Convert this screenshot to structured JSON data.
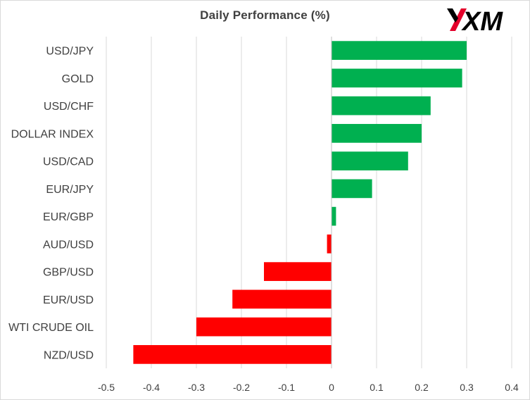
{
  "chart_data": {
    "type": "bar",
    "orientation": "horizontal",
    "title": "Daily Performance  (%)",
    "xlabel": "",
    "ylabel": "",
    "categories": [
      "USD/JPY",
      "GOLD",
      "USD/CHF",
      "DOLLAR INDEX",
      "USD/CAD",
      "EUR/JPY",
      "EUR/GBP",
      "AUD/USD",
      "GBP/USD",
      "EUR/USD",
      "WTI CRUDE OIL",
      "NZD/USD"
    ],
    "values": [
      0.3,
      0.29,
      0.22,
      0.2,
      0.17,
      0.09,
      0.01,
      -0.01,
      -0.15,
      -0.22,
      -0.3,
      -0.44
    ],
    "xlim": [
      -0.5,
      0.4
    ],
    "xticks": [
      "-0.5",
      "-0.4",
      "-0.3",
      "-0.2",
      "-0.1",
      "0",
      "0.1",
      "0.2",
      "0.3",
      "0.4"
    ],
    "grid": "vertical",
    "legend": "none",
    "colors": {
      "positive": "#00b050",
      "negative": "#ff0000",
      "grid": "#d9d9d9",
      "axis": "#bfbfbf",
      "text": "#404040"
    }
  },
  "logo": {
    "text": "XM",
    "color": "#000000",
    "accent": "#e4002b"
  }
}
